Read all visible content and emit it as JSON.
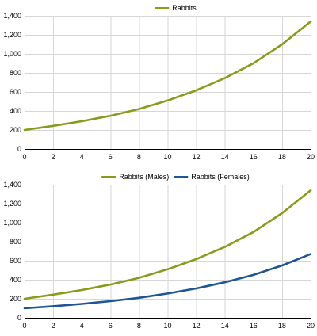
{
  "chart_data": [
    {
      "type": "line",
      "legend": "top-center",
      "grid": true,
      "xlim": [
        0,
        20
      ],
      "ylim": [
        0,
        1400
      ],
      "x_ticks": [
        "0",
        "2",
        "4",
        "6",
        "8",
        "10",
        "12",
        "14",
        "16",
        "18",
        "20"
      ],
      "y_ticks": [
        "0",
        "200",
        "400",
        "600",
        "800",
        "1,000",
        "1,200",
        "1,400"
      ],
      "x": [
        0,
        2,
        4,
        6,
        8,
        10,
        12,
        14,
        16,
        18,
        20
      ],
      "series": [
        {
          "name": "Rabbits",
          "color": "#8a9a1b",
          "values": [
            200,
            243,
            292,
            349,
            420,
            510,
            617,
            745,
            902,
            1100,
            1340
          ]
        }
      ]
    },
    {
      "type": "line",
      "legend": "top-center",
      "grid": true,
      "xlim": [
        0,
        20
      ],
      "ylim": [
        0,
        1400
      ],
      "x_ticks": [
        "0",
        "2",
        "4",
        "6",
        "8",
        "10",
        "12",
        "14",
        "16",
        "18",
        "20"
      ],
      "y_ticks": [
        "0",
        "200",
        "400",
        "600",
        "800",
        "1,000",
        "1,200",
        "1,400"
      ],
      "x": [
        0,
        2,
        4,
        6,
        8,
        10,
        12,
        14,
        16,
        18,
        20
      ],
      "series": [
        {
          "name": "Rabbits (Males)",
          "color": "#8a9a1b",
          "values": [
            200,
            243,
            292,
            349,
            420,
            510,
            617,
            745,
            902,
            1100,
            1340
          ]
        },
        {
          "name": "Rabbits (Females)",
          "color": "#1f5592",
          "values": [
            100,
            122,
            146,
            175,
            210,
            255,
            308,
            373,
            451,
            550,
            670
          ]
        }
      ]
    }
  ]
}
